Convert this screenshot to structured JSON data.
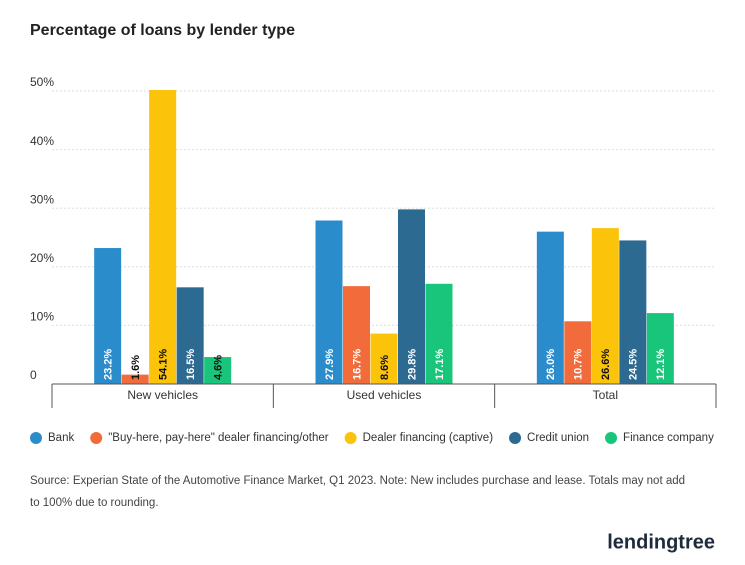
{
  "chart_data": {
    "type": "bar",
    "title": "Percentage of loans by lender type",
    "categories": [
      "New vehicles",
      "Used vehicles",
      "Total"
    ],
    "series": [
      {
        "name": "Bank",
        "color": "#2b8ccc",
        "values": [
          23.2,
          27.9,
          26.0
        ],
        "value_labels": [
          "23.2%",
          "27.9%",
          "26.0%"
        ]
      },
      {
        "name": "\"Buy-here, pay-here\" dealer financing/other",
        "color": "#f26b3a",
        "values": [
          1.6,
          16.7,
          10.7
        ],
        "value_labels": [
          "1.6%",
          "16.7%",
          "10.7%"
        ]
      },
      {
        "name": "Dealer financing (captive)",
        "color": "#fcc30b",
        "values": [
          54.1,
          8.6,
          26.6
        ],
        "value_labels": [
          "54.1%",
          "8.6%",
          "26.6%"
        ]
      },
      {
        "name": "Credit union",
        "color": "#2d6a91",
        "values": [
          16.5,
          29.8,
          24.5
        ],
        "value_labels": [
          "16.5%",
          "29.8%",
          "24.5%"
        ]
      },
      {
        "name": "Finance company",
        "color": "#19c57a",
        "values": [
          4.6,
          17.1,
          12.1
        ],
        "value_labels": [
          "4.6%",
          "17.1%",
          "12.1%"
        ]
      }
    ],
    "ylim": [
      0,
      50
    ],
    "yticks": [
      0,
      {
        "value": 10,
        "label": "10%"
      },
      {
        "value": 20,
        "label": "20%"
      },
      {
        "value": 30,
        "label": "30%"
      },
      {
        "value": 40,
        "label": "40%"
      },
      {
        "value": 50,
        "label": "50%"
      }
    ],
    "grid": true,
    "source": [
      "Source: Experian State of the Automotive Finance Market, Q1 2023. Note: New includes purchase and lease. Totals may not add",
      "to 100% due to rounding."
    ],
    "logo": "lendingtree"
  }
}
